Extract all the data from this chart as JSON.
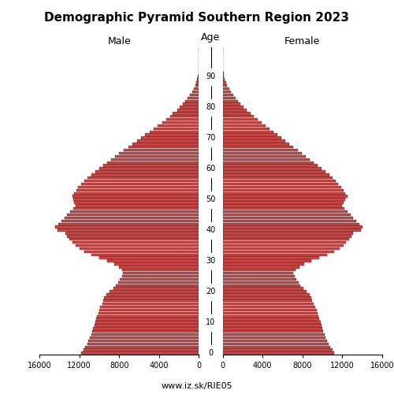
{
  "title": "Demographic Pyramid Southern Region 2023",
  "subtitle_male": "Male",
  "subtitle_female": "Female",
  "subtitle_age": "Age",
  "url": "www.iz.sk/RIE05",
  "bar_color": "#cc4444",
  "bar_edgecolor": "#1a1a1a",
  "xlim": 16000,
  "age_labels": [
    0,
    10,
    20,
    30,
    40,
    50,
    60,
    70,
    80,
    90
  ],
  "male": [
    11800,
    11600,
    11400,
    11200,
    11100,
    10900,
    10800,
    10700,
    10600,
    10500,
    10400,
    10300,
    10200,
    10100,
    10000,
    9900,
    9700,
    9600,
    9500,
    9300,
    9000,
    8600,
    8300,
    8100,
    7900,
    7700,
    7600,
    7700,
    8000,
    8500,
    9200,
    10000,
    10800,
    11500,
    12000,
    12400,
    12700,
    13000,
    13200,
    13400,
    14200,
    14400,
    14100,
    13800,
    13500,
    13200,
    12900,
    12600,
    12400,
    12500,
    12600,
    12700,
    12500,
    12300,
    12100,
    11800,
    11500,
    11200,
    10800,
    10400,
    10000,
    9600,
    9200,
    8800,
    8400,
    8000,
    7500,
    7100,
    6700,
    6200,
    5800,
    5400,
    4900,
    4500,
    4100,
    3700,
    3300,
    2900,
    2600,
    2200,
    1900,
    1600,
    1350,
    1100,
    870,
    660,
    490,
    350,
    230,
    150,
    90,
    55,
    30,
    15,
    8,
    4,
    2,
    1,
    0,
    0
  ],
  "female": [
    11200,
    11000,
    10800,
    10600,
    10500,
    10300,
    10200,
    10100,
    10000,
    9900,
    9800,
    9700,
    9600,
    9500,
    9400,
    9300,
    9100,
    9000,
    8900,
    8700,
    8400,
    8100,
    7800,
    7600,
    7400,
    7200,
    7100,
    7300,
    7700,
    8200,
    8900,
    9700,
    10500,
    11200,
    11700,
    12100,
    12400,
    12700,
    12900,
    13100,
    13900,
    14000,
    13700,
    13400,
    13100,
    12800,
    12500,
    12200,
    12000,
    12100,
    12300,
    12500,
    12300,
    12100,
    11900,
    11600,
    11300,
    11000,
    10700,
    10300,
    9900,
    9500,
    9100,
    8700,
    8300,
    7900,
    7500,
    7100,
    6700,
    6300,
    5900,
    5500,
    5100,
    4700,
    4300,
    3900,
    3500,
    3100,
    2800,
    2400,
    2100,
    1800,
    1550,
    1300,
    1060,
    830,
    630,
    460,
    320,
    210,
    130,
    80,
    45,
    22,
    11,
    5,
    2,
    1,
    0,
    0
  ]
}
